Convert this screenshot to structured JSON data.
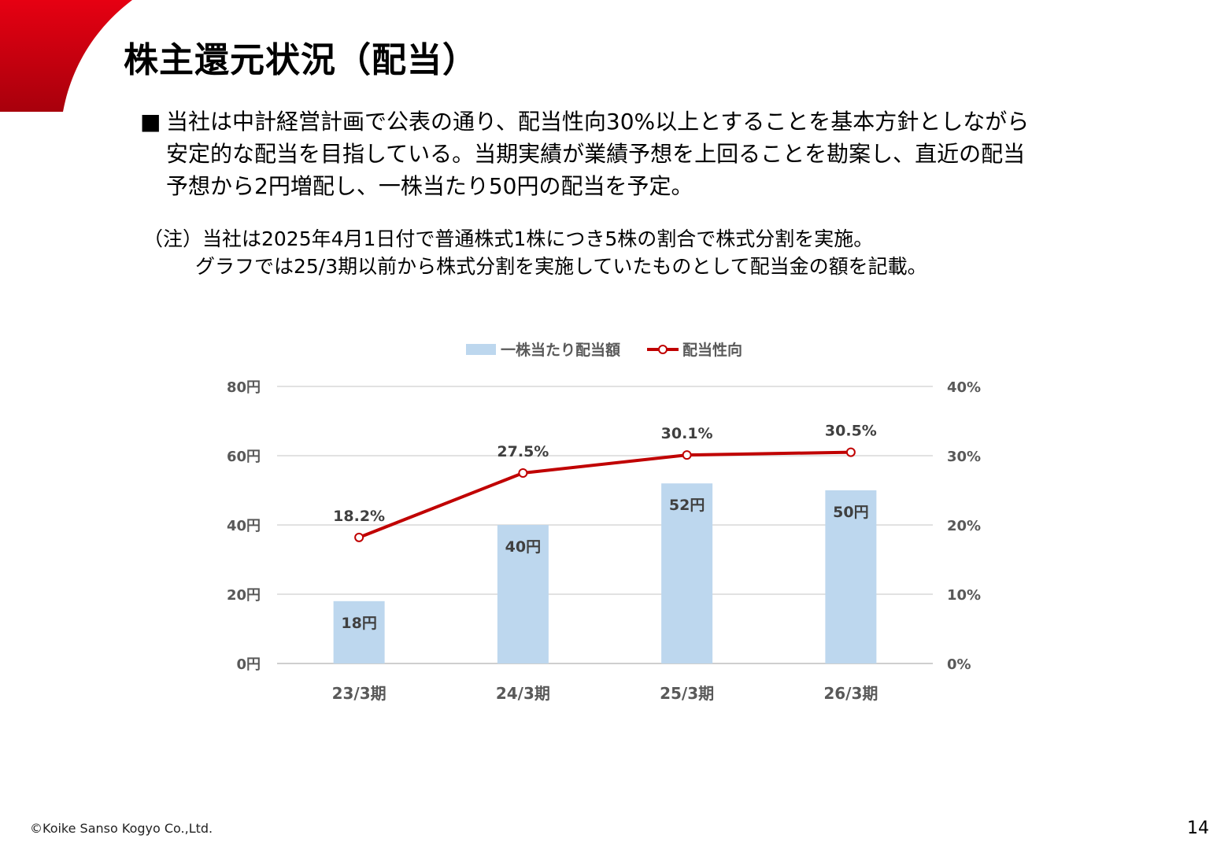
{
  "header": {
    "title": "株主還元状況（配当）"
  },
  "body": {
    "bullet_mark": "■",
    "bullet_lines": [
      "当社は中計経営計画で公表の通り、配当性向30%以上とすることを基本方針としながら",
      "安定的な配当を目指している。当期実績が業績予想を上回ることを勘案し、直近の配当",
      "予想から2円増配し、一株当たり50円の配当を予定。"
    ],
    "note_line1": "（注）当社は2025年4月1日付で普通株式1株につき5株の割合で株式分割を実施。",
    "note_line2": "グラフでは25/3期以前から株式分割を実施していたものとして配当金の額を記載。"
  },
  "chart_data": {
    "type": "bar",
    "categories": [
      "23/3期",
      "24/3期",
      "25/3期",
      "26/3期"
    ],
    "series": [
      {
        "name": "一株当たり配当額",
        "type": "bar",
        "axis": "left",
        "values": [
          18,
          40,
          52,
          50
        ],
        "labels": [
          "18円",
          "40円",
          "52円",
          "50円"
        ],
        "color": "#BDD7EE"
      },
      {
        "name": "配当性向",
        "type": "line",
        "axis": "right",
        "values": [
          18.2,
          27.5,
          30.1,
          30.5
        ],
        "labels": [
          "18.2%",
          "27.5%",
          "30.1%",
          "30.5%"
        ],
        "color": "#C00000"
      }
    ],
    "y_left": {
      "ylim": [
        0,
        80
      ],
      "ticks": [
        0,
        20,
        40,
        60,
        80
      ],
      "tick_labels": [
        "0円",
        "20円",
        "40円",
        "60円",
        "80円"
      ]
    },
    "y_right": {
      "ylim": [
        0,
        40
      ],
      "ticks": [
        0,
        10,
        20,
        30,
        40
      ],
      "tick_labels": [
        "0%",
        "10%",
        "20%",
        "30%",
        "40%"
      ]
    },
    "legend_position": "top-center",
    "grid": true
  },
  "footer": {
    "copyright": "©Koike Sanso Kogyo Co.,Ltd.",
    "page_number": "14"
  }
}
